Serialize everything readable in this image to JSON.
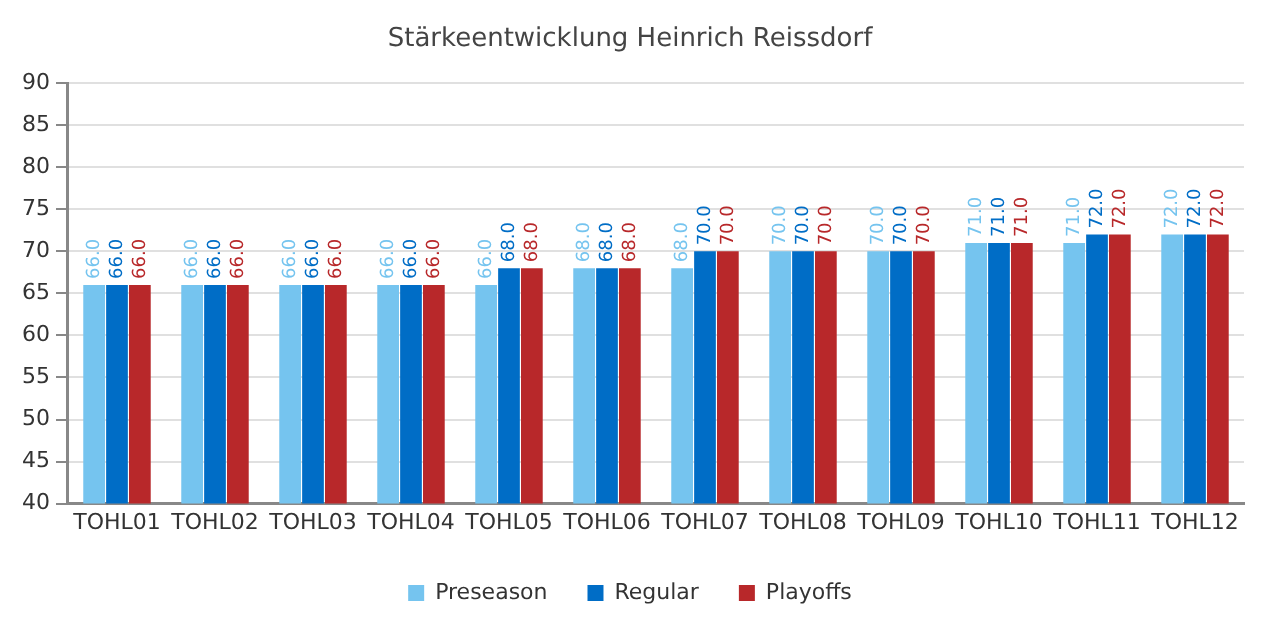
{
  "chart_data": {
    "type": "bar",
    "title": "Stärkeentwicklung Heinrich Reissdorf",
    "categories": [
      "TOHL01",
      "TOHL02",
      "TOHL03",
      "TOHL04",
      "TOHL05",
      "TOHL06",
      "TOHL07",
      "TOHL08",
      "TOHL09",
      "TOHL10",
      "TOHL11",
      "TOHL12"
    ],
    "series": [
      {
        "name": "Preseason",
        "color": "#75c4ef",
        "values": [
          66,
          66,
          66,
          66,
          66,
          68,
          68,
          70,
          70,
          71,
          71,
          72
        ],
        "value_labels": [
          "66.0",
          "66.0",
          "66.0",
          "66.0",
          "66.0",
          "68.0",
          "68.0",
          "70.0",
          "70.0",
          "71.0",
          "71.0",
          "72.0"
        ]
      },
      {
        "name": "Regular",
        "color": "#006dc6",
        "values": [
          66,
          66,
          66,
          66,
          68,
          68,
          70,
          70,
          70,
          71,
          72,
          72
        ],
        "value_labels": [
          "66.0",
          "66.0",
          "66.0",
          "66.0",
          "68.0",
          "68.0",
          "70.0",
          "70.0",
          "70.0",
          "71.0",
          "72.0",
          "72.0"
        ]
      },
      {
        "name": "Playoffs",
        "color": "#b8282a",
        "values": [
          66,
          66,
          66,
          66,
          68,
          68,
          70,
          70,
          70,
          71,
          72,
          72
        ],
        "value_labels": [
          "66.0",
          "66.0",
          "66.0",
          "66.0",
          "68.0",
          "68.0",
          "70.0",
          "70.0",
          "70.0",
          "71.0",
          "72.0",
          "72.0"
        ]
      }
    ],
    "ylim": [
      40,
      90
    ],
    "yticks": [
      40,
      45,
      50,
      55,
      60,
      65,
      70,
      75,
      80,
      85,
      90
    ],
    "grid": "y",
    "legend": "bottom"
  }
}
